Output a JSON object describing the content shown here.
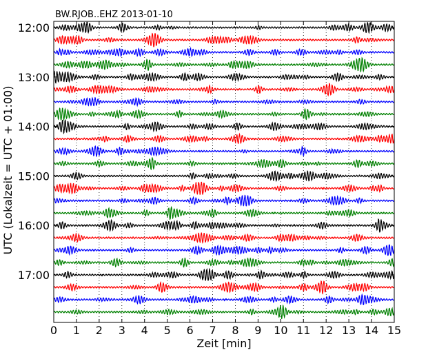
{
  "chart_data": {
    "type": "line",
    "title": "BW.RJOB..EHZ 2013-01-10",
    "xlabel": "Zeit  [min]",
    "ylabel": "UTC (Lokalzeit = UTC + 01:00)",
    "xlim": [
      0,
      15
    ],
    "x_ticks": [
      "0",
      "1",
      "2",
      "3",
      "4",
      "5",
      "6",
      "7",
      "8",
      "9",
      "10",
      "11",
      "12",
      "13",
      "14",
      "15"
    ],
    "y_tick_labels": [
      "12:00",
      "13:00",
      "14:00",
      "15:00",
      "16:00",
      "17:00"
    ],
    "minutes_per_line": 15,
    "line_start_times": [
      "12:00",
      "12:15",
      "12:30",
      "12:45",
      "13:00",
      "13:15",
      "13:30",
      "13:45",
      "14:00",
      "14:15",
      "14:30",
      "14:45",
      "15:00",
      "15:15",
      "15:30",
      "15:45",
      "16:00",
      "16:15",
      "16:30",
      "16:45",
      "17:00",
      "17:15",
      "17:30",
      "17:45"
    ],
    "colors": [
      "#000000",
      "#ff0000",
      "#0000ff",
      "#008000"
    ],
    "grid": "vertical-dotted",
    "legend": "none"
  }
}
